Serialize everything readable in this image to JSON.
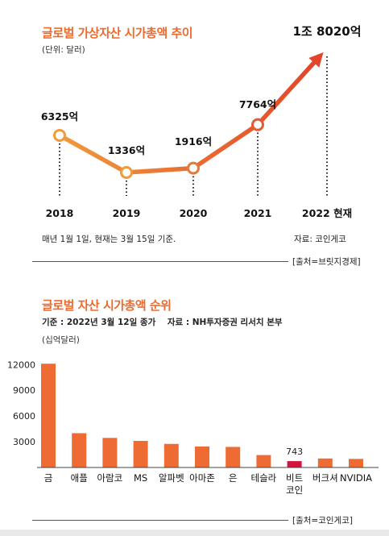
{
  "chart_data": [
    {
      "type": "line",
      "title": "글로벌 가상자산 시가총액 추이",
      "unit": "(단위: 달러)",
      "categories": [
        "2018",
        "2019",
        "2020",
        "2021",
        "2022 현재"
      ],
      "series": [
        {
          "values": [
            632500000000,
            133600000000,
            191600000000,
            776400000000,
            1802000000000
          ],
          "value_labels": [
            "6325억",
            "1336억",
            "1916억",
            "7764억",
            "1조 8020억"
          ]
        }
      ],
      "note": "매년 1월 1일, 현재는 3월 15일 기준.",
      "data_source": "자료: 코인게코",
      "credit": "[출처=브릿지경제]",
      "colors": {
        "line_start": "#f09a3a",
        "line_end": "#e2452a",
        "marker_fill": "#ffffff"
      }
    },
    {
      "type": "bar",
      "title": "글로벌 자산 시가총액 순위",
      "subtitle": "기준 : 2022년 3월 12일 종가    자료 : NH투자증권 리서치 본부",
      "ylabel": "(십억달러)",
      "categories": [
        "금",
        "애플",
        "아람코",
        "MS",
        "알파벳",
        "아마존",
        "은",
        "테슬라",
        "비트\n코인",
        "버크셔",
        "NVIDIA"
      ],
      "values": [
        12100,
        4000,
        3450,
        3100,
        2750,
        2450,
        2400,
        1450,
        743,
        1050,
        1000
      ],
      "yticks": [
        "12000",
        "9000",
        "6000",
        "3000"
      ],
      "ylim": [
        0,
        12500
      ],
      "annotations": [
        {
          "category_index": 8,
          "text": "743"
        }
      ],
      "highlight_index": 8,
      "credit": "[출처=코인게코]",
      "colors": {
        "bar": "#ef6b34",
        "highlight": "#d4143f",
        "axis": "#444444"
      }
    }
  ]
}
